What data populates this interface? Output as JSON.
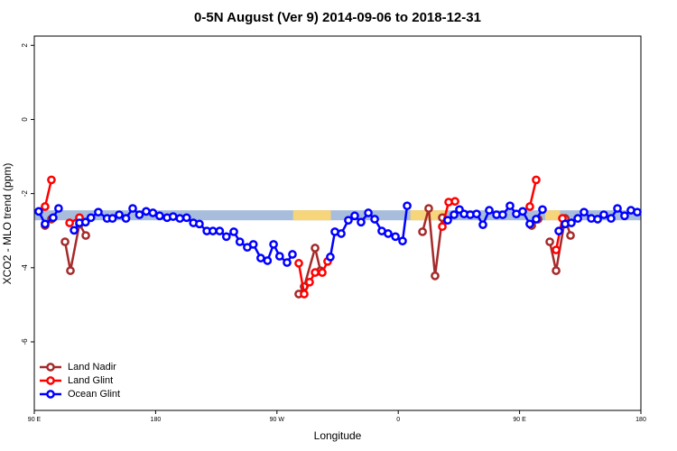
{
  "chart_data": {
    "type": "line",
    "title": "0-5N August (Ver 9)   2014-09-06 to 2018-12-31",
    "x_label": "Longitude",
    "y_label": "XCO2 - MLO trend (ppm)",
    "xlim": [
      90,
      540
    ],
    "xticks": [
      {
        "value": 90,
        "label": "90 E"
      },
      {
        "value": 180,
        "label": "180"
      },
      {
        "value": 270,
        "label": "90 W"
      },
      {
        "value": 360,
        "label": "0"
      },
      {
        "value": 450,
        "label": "90 E"
      },
      {
        "value": 540,
        "label": "180"
      }
    ],
    "ylim": [
      -7.85,
      2.25
    ],
    "yticks": [
      2,
      0,
      -2,
      -4,
      -6
    ],
    "legend": "bottom-left",
    "band": {
      "ylim": [
        -2.45,
        -2.72
      ],
      "ocean_color": "#a7bddb",
      "land_color": "#f7d57a",
      "land_segments": [
        [
          282,
          310
        ],
        [
          369,
          396
        ],
        [
          469,
          480
        ]
      ]
    },
    "series": [
      {
        "name": "Land Nadir",
        "color": "#a52a2a",
        "x": [
          98,
          102.7,
          null,
          112.8,
          116.8,
          123.5,
          128.2,
          null,
          286.2,
          290.2,
          298.3,
          302.3,
          null,
          378,
          382.6,
          387.3,
          392.7,
          null,
          459,
          463.7,
          null,
          472.4,
          477.1,
          483.8,
          487.8
        ],
        "values": [
          -2.86,
          -2.69,
          null,
          -3.3,
          -4.08,
          -2.82,
          -3.13,
          null,
          -4.71,
          -4.51,
          -3.47,
          -4.08,
          null,
          -3.03,
          -2.4,
          -4.22,
          -2.65,
          null,
          -2.86,
          -2.69,
          null,
          -3.3,
          -4.08,
          -2.67,
          -3.13
        ]
      },
      {
        "name": "Land Glint",
        "color": "#ff0000",
        "x": [
          98,
          102.7,
          null,
          116.2,
          123.5,
          null,
          286.2,
          290.2,
          294.2,
          298.3,
          303.6,
          307.6,
          null,
          392.7,
          397.4,
          402.1,
          null,
          457.6,
          462.3,
          null,
          477.1,
          481.8
        ],
        "values": [
          -2.35,
          -1.63,
          null,
          -2.79,
          -2.65,
          null,
          -3.88,
          -4.71,
          -4.39,
          -4.13,
          -4.13,
          -3.83,
          null,
          -2.89,
          -2.23,
          -2.21,
          null,
          -2.35,
          -1.63,
          null,
          -3.52,
          -2.67
        ]
      },
      {
        "name": "Ocean Glint",
        "color": "#0000ff",
        "x": [
          93.3,
          98,
          104,
          108,
          null,
          119.5,
          123.5,
          128,
          132,
          137.5,
          144,
          148,
          153,
          158,
          163,
          168,
          173,
          178,
          183,
          188.5,
          193,
          198,
          203,
          208,
          212.5,
          218,
          222.5,
          227.5,
          232.5,
          238,
          242.5,
          248,
          252.5,
          258,
          263,
          267.5,
          272,
          277.5,
          281.5,
          null,
          309.6,
          313,
          317.7,
          323,
          327.7,
          332.4,
          337.8,
          342.5,
          347.8,
          352.5,
          357.9,
          363.2,
          366.6,
          null,
          396.7,
          401.4,
          405.4,
          408.8,
          413.4,
          418.1,
          422.8,
          427.5,
          432.9,
          437.5,
          442.9,
          447.6,
          452.3,
          457.6,
          462.3,
          467,
          null,
          479.1,
          483.8,
          488.4,
          493.2,
          497.8,
          503.2,
          507.9,
          512.5,
          517.9,
          522.6,
          527.9,
          532.6,
          537.3
        ],
        "values": [
          -2.48,
          -2.82,
          -2.65,
          -2.4,
          null,
          -2.99,
          -2.79,
          -2.77,
          -2.65,
          -2.5,
          -2.67,
          -2.67,
          -2.57,
          -2.67,
          -2.4,
          -2.57,
          -2.48,
          -2.52,
          -2.6,
          -2.65,
          -2.62,
          -2.67,
          -2.65,
          -2.79,
          -2.82,
          -3.01,
          -3.01,
          -3.01,
          -3.16,
          -3.03,
          -3.3,
          -3.45,
          -3.37,
          -3.74,
          -3.81,
          -3.37,
          -3.69,
          -3.86,
          -3.64,
          null,
          -3.71,
          -3.03,
          -3.08,
          -2.72,
          -2.6,
          -2.77,
          -2.52,
          -2.69,
          -3.01,
          -3.08,
          -3.16,
          -3.28,
          -2.33,
          null,
          -2.72,
          -2.57,
          -2.43,
          -2.55,
          -2.57,
          -2.55,
          -2.84,
          -2.45,
          -2.57,
          -2.57,
          -2.33,
          -2.55,
          -2.48,
          -2.82,
          -2.69,
          -2.43,
          null,
          -3.01,
          -2.82,
          -2.79,
          -2.67,
          -2.5,
          -2.67,
          -2.69,
          -2.57,
          -2.67,
          -2.4,
          -2.6,
          -2.45,
          -2.5
        ]
      }
    ]
  }
}
